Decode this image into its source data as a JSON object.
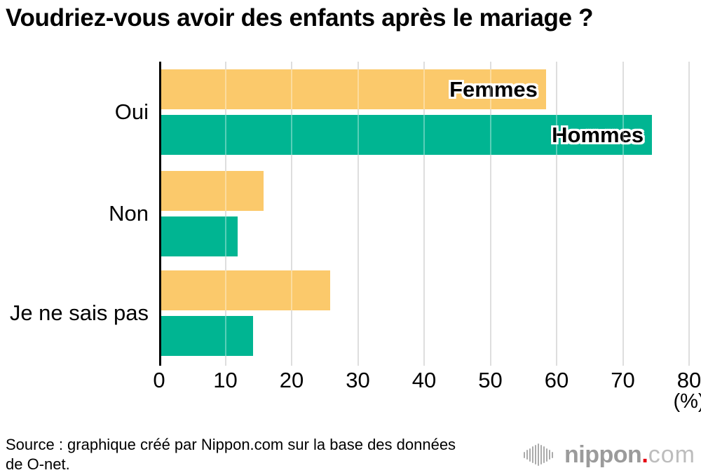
{
  "title": "Voudriez-vous avoir des enfants après le mariage ?",
  "chart_data": {
    "type": "bar",
    "orientation": "horizontal",
    "title": "Voudriez-vous avoir des enfants après le mariage ?",
    "categories": [
      "Oui",
      "Non",
      "Je ne sais pas"
    ],
    "series": [
      {
        "name": "Femmes",
        "color": "#FBC96B",
        "values": [
          58.4,
          15.8,
          25.8
        ]
      },
      {
        "name": "Hommes",
        "color": "#00B592",
        "values": [
          74.4,
          11.8,
          14.2
        ]
      }
    ],
    "xlim": [
      0,
      80
    ],
    "xticks": [
      0,
      10,
      20,
      30,
      40,
      50,
      60,
      70,
      80
    ],
    "x_unit_label": "(%)",
    "grid": true,
    "gridline_color": "#CCCCCC",
    "axis_color": "#000000",
    "legend_style": "labels inside first pair of bars"
  },
  "source": {
    "line1": "Source : graphique créé par Nippon.com sur la base des données",
    "line2": "de O-net."
  },
  "logo": {
    "icon": "soundwave-bars-icon",
    "name": "nippon",
    "dot": ".",
    "tld": "com",
    "text_color": "#9B9B9B",
    "tld_color": "#BDBDBD",
    "dot_color": "#E60012"
  },
  "colors": {
    "background": "#FFFFFF",
    "femmes_bar": "#FBC96B",
    "hommes_bar": "#00B592"
  }
}
